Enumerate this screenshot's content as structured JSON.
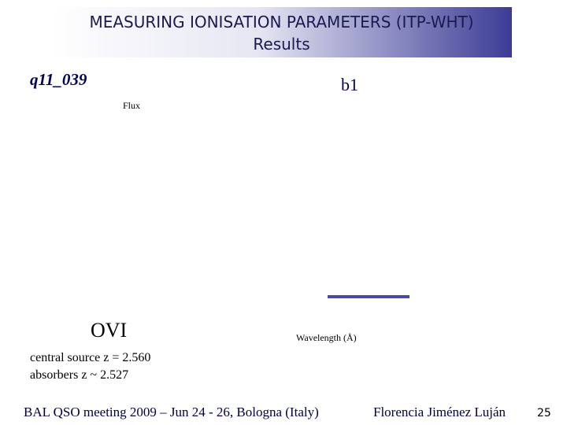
{
  "header": {
    "title": "MEASURING IONISATION PARAMETERS (ITP-WHT)",
    "subtitle": "Results"
  },
  "object": "q11_039",
  "component": "b1",
  "plot": {
    "ylabel": "Flux",
    "xlabel": "Wavelength (Å)",
    "ion": "OVI"
  },
  "notes": [
    "central source z = 2.560",
    "absorbers z ~ 2.527"
  ],
  "footer": {
    "meeting": "BAL QSO meeting 2009 – Jun 24 - 26, Bologna (Italy)",
    "author": "Florencia Jiménez Luján",
    "page": "25"
  }
}
